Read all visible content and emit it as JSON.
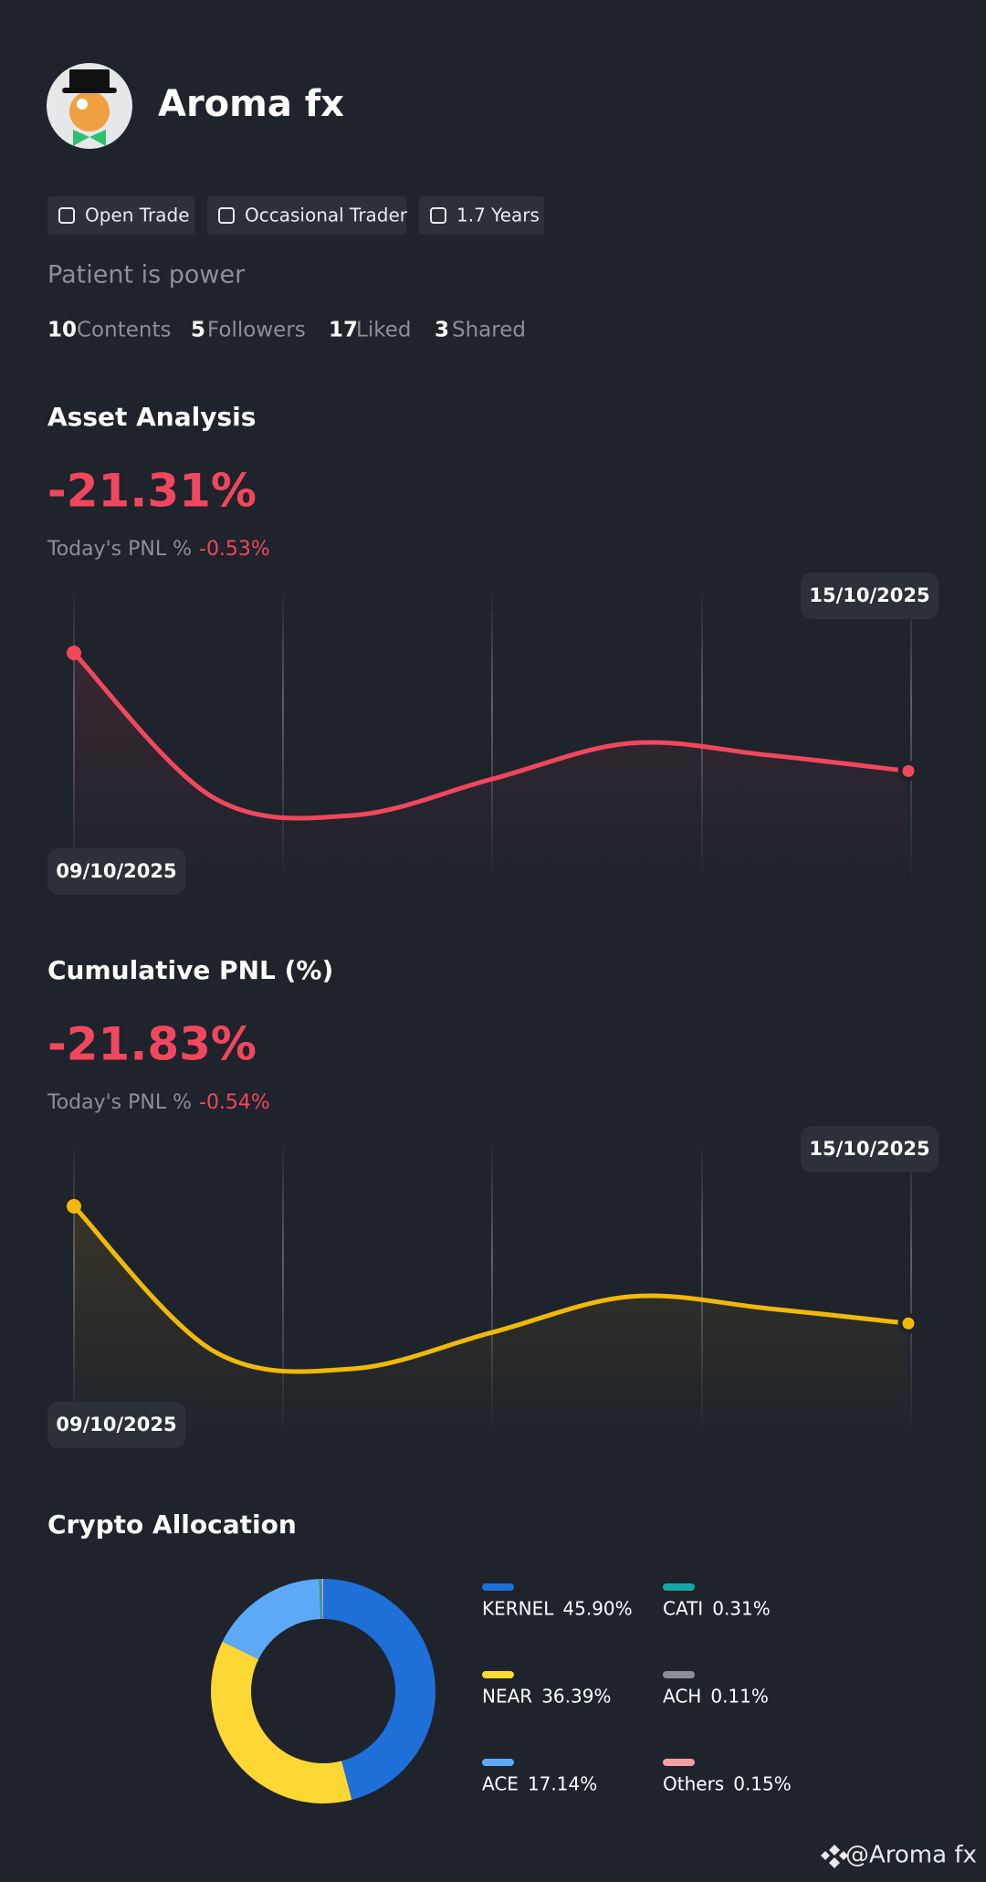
{
  "profile": {
    "name": "Aroma fx",
    "tags": [
      "Open Trade",
      "Occasional Trader",
      "1.7 Years"
    ],
    "bio": "Patient is power",
    "stats": [
      {
        "count": "10",
        "label": "Contents"
      },
      {
        "count": "5",
        "label": "Followers"
      },
      {
        "count": "17",
        "label": "Liked"
      },
      {
        "count": "3",
        "label": "Shared"
      }
    ]
  },
  "chart_data": [
    {
      "type": "line",
      "title": "Asset Analysis",
      "headline": "-21.31%",
      "today_label": "Today's PNL %",
      "today_value": "-0.53%",
      "x": [
        "09/10/2025",
        null,
        null,
        null,
        null,
        null,
        "15/10/2025"
      ],
      "series": [
        {
          "color": "#f0475e",
          "values": [
            -11.5,
            -23.5,
            -25.0,
            -22.0,
            -19.0,
            -20.0,
            -21.31
          ]
        }
      ]
    },
    {
      "type": "line",
      "title": "Cumulative PNL (%)",
      "headline": "-21.83%",
      "today_label": "Today's PNL %",
      "today_value": "-0.54%",
      "x": [
        "09/10/2025",
        null,
        null,
        null,
        null,
        null,
        "15/10/2025"
      ],
      "series": [
        {
          "color": "#f0b90b",
          "values": [
            -12.1,
            -24.1,
            -25.6,
            -22.6,
            -19.6,
            -20.6,
            -21.83
          ]
        }
      ]
    },
    {
      "type": "donut",
      "title": "Crypto Allocation",
      "categories": [
        "KERNEL",
        "NEAR",
        "ACE",
        "CATI",
        "ACH",
        "Others"
      ],
      "values": [
        45.9,
        36.39,
        17.14,
        0.31,
        0.11,
        0.15
      ],
      "value_labels": [
        "45.90%",
        "36.39%",
        "17.14%",
        "0.31%",
        "0.11%",
        "0.15%"
      ],
      "colors": [
        "#1f6fd8",
        "#fdd835",
        "#5ea9f5",
        "#17a7a7",
        "#8a8f98",
        "#f2a0a8"
      ]
    }
  ],
  "watermark": "@Aroma fx"
}
